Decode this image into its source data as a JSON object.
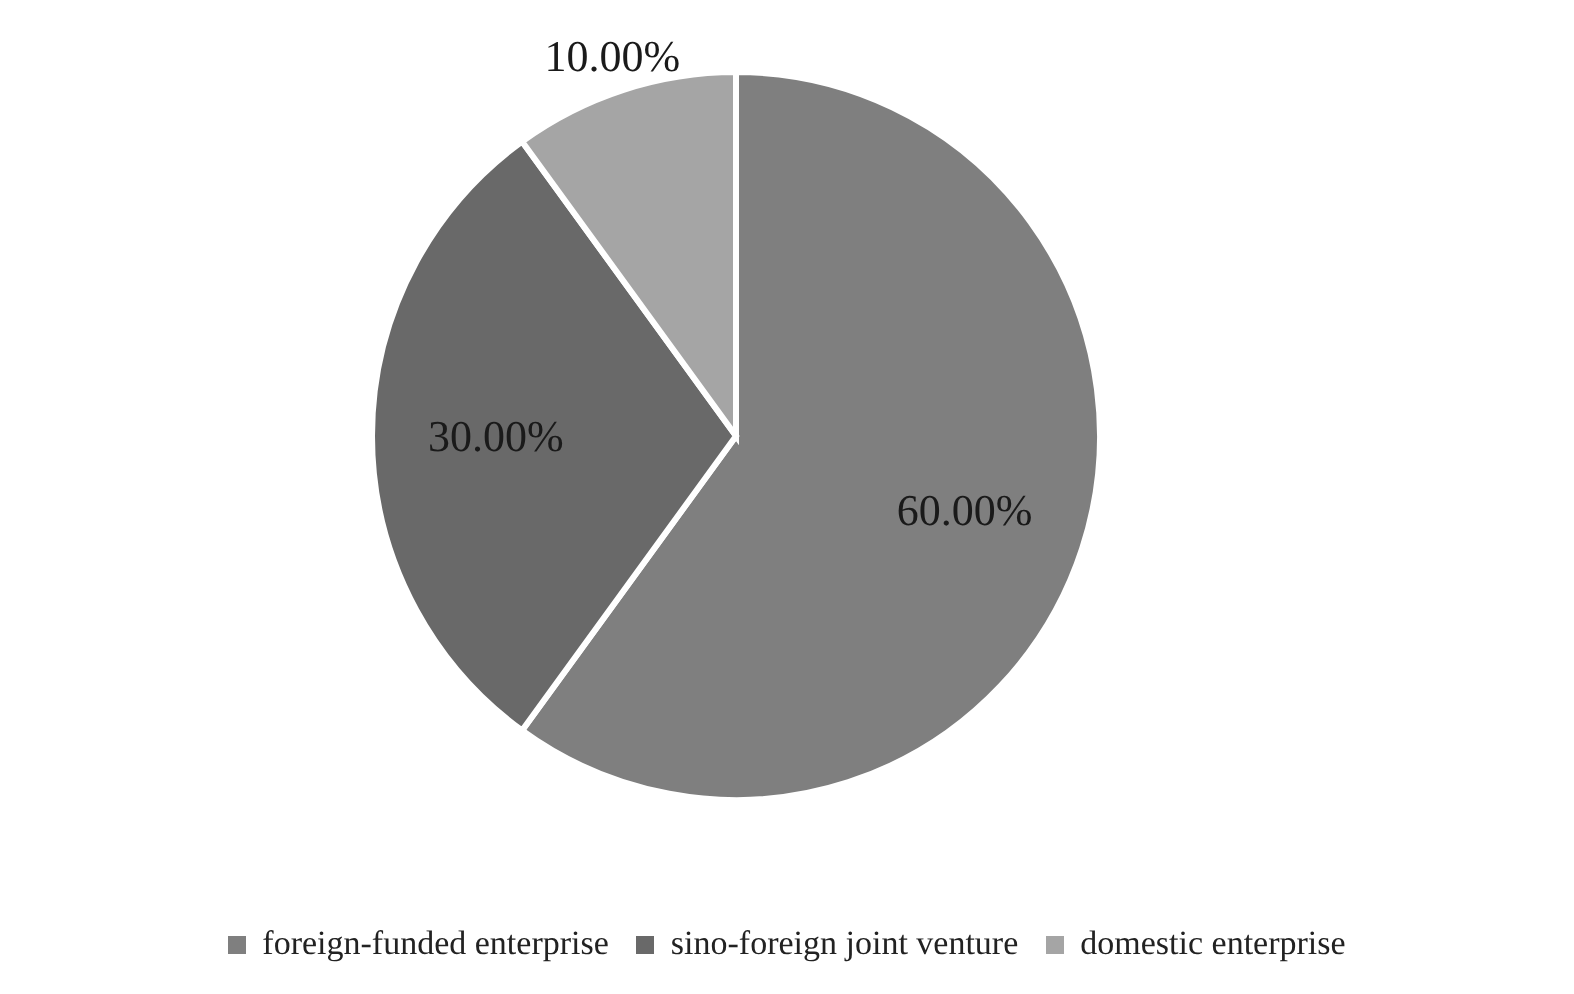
{
  "chart_data": {
    "type": "pie",
    "categories": [
      "foreign-funded enterprise",
      "sino-foreign joint venture",
      "domestic enterprise"
    ],
    "values": [
      60,
      30,
      10
    ],
    "colors": [
      "#7f7f7f",
      "#696969",
      "#a5a5a5"
    ],
    "value_labels": [
      "60.00%",
      "30.00%",
      "10.00%"
    ],
    "legend": "bottom"
  }
}
